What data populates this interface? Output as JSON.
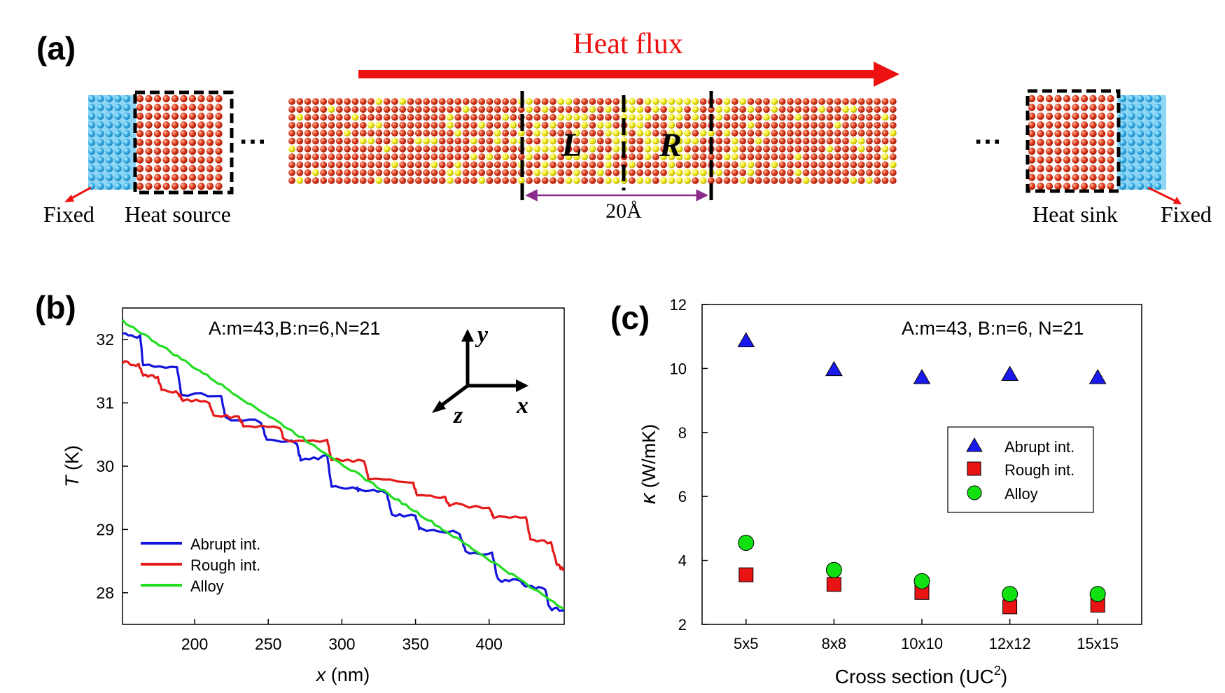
{
  "panel_a": {
    "label": "(a)",
    "heat_flux": "Heat flux",
    "fixed_left": "Fixed",
    "fixed_right": "Fixed",
    "heat_source": "Heat source",
    "heat_sink": "Heat sink",
    "region_left": "L",
    "region_right": "R",
    "interface_width": "20Å",
    "ellipsis": "···",
    "colors": {
      "atom_a": "#d9391a",
      "atom_b": "#f2ea10",
      "fixed": "#3ab2e8",
      "flux": "#ee1111"
    }
  },
  "chart_data": [
    {
      "type": "line",
      "panel_label": "(b)",
      "title": "A:m=43,B:n=6,N=21",
      "xlabel_var": "x",
      "xlabel_unit": " (nm)",
      "ylabel_var": "T",
      "ylabel_unit": " (K)",
      "xlim": [
        151,
        451
      ],
      "ylim": [
        27.5,
        32.5
      ],
      "xticks": [
        200,
        250,
        300,
        350,
        400
      ],
      "yticks": [
        28,
        29,
        30,
        31,
        32
      ],
      "axes_icon": {
        "x": "x",
        "y": "y",
        "z": "z"
      },
      "legend": [
        "Abrupt int.",
        "Rough int.",
        "Alloy"
      ],
      "series": [
        {
          "name": "Abrupt int.",
          "color": "#1414dc",
          "style": "stepped",
          "x": [
            151,
            163,
            165,
            188,
            191,
            218,
            221,
            245,
            249,
            269,
            272,
            290,
            293,
            310,
            313,
            330,
            334,
            350,
            353,
            380,
            384,
            402,
            406,
            421,
            425,
            438,
            441,
            451
          ],
          "y": [
            32.1,
            32.05,
            31.6,
            31.55,
            31.15,
            31.1,
            30.75,
            30.7,
            30.4,
            30.38,
            30.1,
            30.15,
            29.7,
            29.65,
            29.6,
            29.6,
            29.25,
            29.2,
            29.0,
            28.95,
            28.65,
            28.62,
            28.2,
            28.2,
            28.1,
            28.05,
            27.75,
            27.72
          ]
        },
        {
          "name": "Rough int.",
          "color": "#e41a1a",
          "style": "stepped",
          "x": [
            151,
            162,
            165,
            175,
            178,
            189,
            192,
            210,
            213,
            230,
            233,
            258,
            261,
            290,
            293,
            315,
            318,
            348,
            351,
            370,
            373,
            400,
            403,
            425,
            428,
            442,
            446,
            451
          ],
          "y": [
            31.65,
            31.6,
            31.45,
            31.4,
            31.2,
            31.15,
            31.05,
            31.0,
            30.8,
            30.78,
            30.65,
            30.6,
            30.4,
            30.4,
            30.1,
            30.1,
            29.8,
            29.75,
            29.55,
            29.5,
            29.4,
            29.35,
            29.2,
            29.18,
            28.85,
            28.8,
            28.45,
            28.35
          ]
        },
        {
          "name": "Alloy",
          "color": "#22dd22",
          "style": "smooth",
          "x": [
            151,
            451
          ],
          "y": [
            32.3,
            27.75
          ]
        }
      ]
    },
    {
      "type": "scatter",
      "panel_label": "(c)",
      "title": "A:m=43, B:n=6, N=21",
      "xlabel": "Cross section (UC",
      "xlabel_sup": "2",
      "xlabel_tail": ")",
      "ylabel_var": "κ",
      "ylabel_unit": " (W/mK)",
      "categories": [
        "5x5",
        "8x8",
        "10x10",
        "12x12",
        "15x15"
      ],
      "ylim": [
        2,
        12
      ],
      "yticks": [
        2,
        4,
        6,
        8,
        10,
        12
      ],
      "legend": [
        "Abrupt int.",
        "Rough int.",
        "Alloy"
      ],
      "series": [
        {
          "name": "Abrupt int.",
          "marker": "triangle",
          "color": "#1a1aee",
          "values": [
            10.85,
            9.95,
            9.7,
            9.8,
            9.7
          ]
        },
        {
          "name": "Rough int.",
          "marker": "square",
          "color": "#e81414",
          "values": [
            3.55,
            3.25,
            3.0,
            2.55,
            2.6
          ]
        },
        {
          "name": "Alloy",
          "marker": "circle",
          "color": "#11e011",
          "values": [
            4.55,
            3.7,
            3.35,
            2.95,
            2.95
          ]
        }
      ]
    }
  ]
}
